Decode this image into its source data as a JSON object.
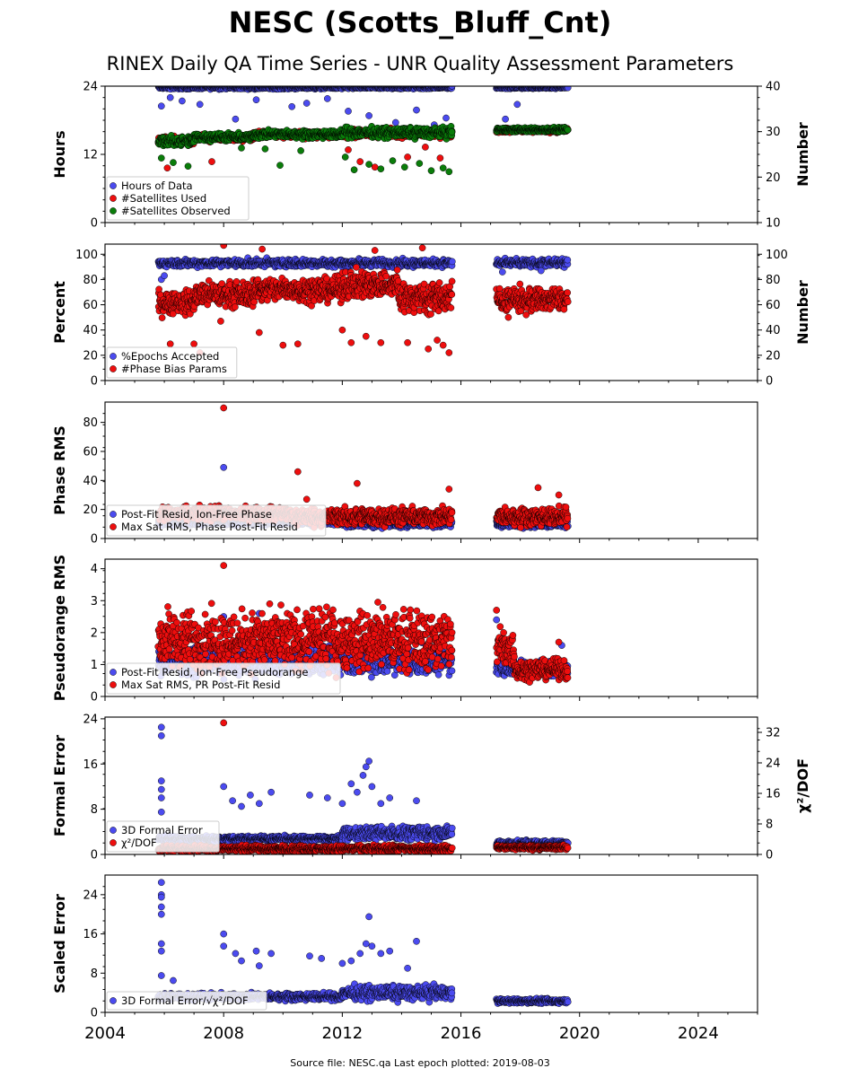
{
  "header": {
    "title": "NESC (Scotts_Bluff_Cnt)",
    "subtitle": "RINEX Daily QA Time Series - UNR Quality Assessment Parameters"
  },
  "footer": "Source file: NESC.qa Last epoch plotted: 2019-08-03",
  "colors": {
    "blue": "#4b4bef",
    "red": "#ee0e0e",
    "green": "#0a7d0a"
  },
  "chart_data": [
    {
      "type": "scatter",
      "ylabel": "Hours",
      "ylabel_right": "Number",
      "xlim": [
        2004.0,
        2026.0
      ],
      "ylim": [
        0,
        24
      ],
      "ylim_right": [
        10,
        40
      ],
      "yticks": [
        "0",
        "12",
        "24"
      ],
      "yticks_right": [
        "10",
        "20",
        "30",
        "40"
      ],
      "legend_position": "lower-left",
      "series": [
        {
          "name": "Hours of Data",
          "color": "blue",
          "axis": "left",
          "segments": [
            [
              2005.8,
              2015.7,
              23.8,
              0.25
            ],
            [
              2017.2,
              2019.6,
              23.8,
              0.2
            ]
          ],
          "outliers": [
            [
              2005.9,
              20.5
            ],
            [
              2006.2,
              22.0
            ],
            [
              2006.6,
              21.4
            ],
            [
              2007.2,
              20.8
            ],
            [
              2008.4,
              18.2
            ],
            [
              2009.1,
              21.6
            ],
            [
              2010.3,
              20.4
            ],
            [
              2010.8,
              21.0
            ],
            [
              2011.5,
              21.8
            ],
            [
              2012.2,
              19.6
            ],
            [
              2012.9,
              18.8
            ],
            [
              2013.4,
              16.0
            ],
            [
              2013.8,
              17.6
            ],
            [
              2014.5,
              19.8
            ],
            [
              2015.1,
              17.2
            ],
            [
              2015.5,
              18.4
            ],
            [
              2017.5,
              18.2
            ],
            [
              2017.9,
              20.8
            ]
          ]
        },
        {
          "name": "#Satellites Used",
          "color": "red",
          "axis": "right",
          "segments": [
            [
              2005.8,
              2007.0,
              28.0,
              0.8
            ],
            [
              2007.0,
              2009.0,
              28.6,
              0.6
            ],
            [
              2009.0,
              2012.0,
              29.3,
              0.6
            ],
            [
              2012.0,
              2015.7,
              29.6,
              0.8
            ],
            [
              2017.2,
              2019.6,
              30.3,
              0.4
            ]
          ],
          "outliers": [
            [
              2006.1,
              22.0
            ],
            [
              2007.6,
              23.4
            ],
            [
              2012.2,
              26.0
            ],
            [
              2012.6,
              23.4
            ],
            [
              2013.1,
              22.2
            ],
            [
              2014.2,
              24.4
            ],
            [
              2014.8,
              26.6
            ],
            [
              2015.3,
              24.2
            ]
          ]
        },
        {
          "name": "#Satellites Observed",
          "color": "green",
          "axis": "right",
          "segments": [
            [
              2005.8,
              2007.0,
              27.9,
              0.9
            ],
            [
              2007.0,
              2009.0,
              28.8,
              0.7
            ],
            [
              2009.0,
              2012.0,
              29.4,
              0.7
            ],
            [
              2012.0,
              2015.7,
              29.8,
              0.9
            ],
            [
              2017.2,
              2019.6,
              30.4,
              0.4
            ]
          ],
          "outliers": [
            [
              2005.9,
              24.2
            ],
            [
              2006.3,
              23.2
            ],
            [
              2006.8,
              22.4
            ],
            [
              2008.6,
              26.4
            ],
            [
              2009.4,
              26.2
            ],
            [
              2009.9,
              22.6
            ],
            [
              2010.6,
              25.8
            ],
            [
              2012.1,
              24.4
            ],
            [
              2012.4,
              21.6
            ],
            [
              2012.9,
              22.8
            ],
            [
              2013.3,
              21.8
            ],
            [
              2013.7,
              23.6
            ],
            [
              2014.1,
              22.2
            ],
            [
              2014.6,
              23.0
            ],
            [
              2015.0,
              21.4
            ],
            [
              2015.4,
              22.0
            ],
            [
              2015.6,
              21.2
            ]
          ]
        }
      ]
    },
    {
      "type": "scatter",
      "ylabel": "Percent",
      "ylabel_right": "Number",
      "xlim": [
        2004.0,
        2026.0
      ],
      "ylim": [
        0,
        108
      ],
      "ylim_right": [
        0,
        108
      ],
      "yticks": [
        "0",
        "20",
        "40",
        "60",
        "80",
        "100"
      ],
      "yticks_right": [
        "0",
        "20",
        "40",
        "60",
        "80",
        "100"
      ],
      "legend_position": "lower-left",
      "series": [
        {
          "name": "%Epochs Accepted",
          "color": "blue",
          "axis": "left",
          "segments": [
            [
              2005.8,
              2015.7,
              93.0,
              2.5
            ],
            [
              2017.2,
              2019.6,
              93.0,
              2.5
            ]
          ],
          "outliers": [
            [
              2005.9,
              80.0
            ],
            [
              2006.0,
              83.0
            ],
            [
              2017.4,
              86.0
            ],
            [
              2018.7,
              87.0
            ]
          ]
        },
        {
          "name": "#Phase Bias Params",
          "color": "red",
          "axis": "right",
          "segments": [
            [
              2005.8,
              2007.0,
              62.0,
              8.0
            ],
            [
              2007.0,
              2009.0,
              68.0,
              8.0
            ],
            [
              2009.0,
              2012.0,
              72.0,
              8.0
            ],
            [
              2012.0,
              2013.9,
              76.0,
              9.0
            ],
            [
              2013.9,
              2015.7,
              66.0,
              10.0
            ],
            [
              2017.2,
              2019.6,
              64.0,
              8.0
            ]
          ],
          "outliers": [
            [
              2006.2,
              29.0
            ],
            [
              2007.0,
              29.0
            ],
            [
              2007.2,
              22.0
            ],
            [
              2007.9,
              47.0
            ],
            [
              2008.0,
              107.0
            ],
            [
              2009.3,
              104.0
            ],
            [
              2009.2,
              38.0
            ],
            [
              2010.0,
              28.0
            ],
            [
              2010.5,
              29.0
            ],
            [
              2012.0,
              40.0
            ],
            [
              2012.3,
              30.0
            ],
            [
              2012.8,
              35.0
            ],
            [
              2013.1,
              103.0
            ],
            [
              2013.3,
              30.0
            ],
            [
              2014.2,
              30.0
            ],
            [
              2014.7,
              105.0
            ],
            [
              2014.9,
              25.0
            ],
            [
              2015.2,
              32.0
            ],
            [
              2015.4,
              28.0
            ],
            [
              2015.6,
              22.0
            ],
            [
              2017.6,
              50.0
            ],
            [
              2018.2,
              52.0
            ]
          ]
        }
      ]
    },
    {
      "type": "scatter",
      "ylabel": "Phase RMS",
      "xlim": [
        2004.0,
        2026.0
      ],
      "ylim": [
        0,
        94
      ],
      "yticks": [
        "0",
        "20",
        "40",
        "60",
        "80"
      ],
      "legend_position": "lower-left",
      "series": [
        {
          "name": "Post-Fit Resid, Ion-Free Phase",
          "color": "blue",
          "axis": "left",
          "segments": [
            [
              2005.8,
              2012.0,
              11.5,
              2.0
            ],
            [
              2012.0,
              2015.7,
              10.0,
              2.0
            ],
            [
              2017.2,
              2019.6,
              10.0,
              2.0
            ]
          ],
          "outliers": [
            [
              2008.0,
              49.0
            ]
          ]
        },
        {
          "name": "Max Sat RMS, Phase Post-Fit Resid",
          "color": "red",
          "axis": "left",
          "segments": [
            [
              2005.8,
              2010.3,
              17.0,
              4.0
            ],
            [
              2010.3,
              2015.7,
              15.0,
              5.0
            ],
            [
              2017.2,
              2019.6,
              15.0,
              5.0
            ]
          ],
          "outliers": [
            [
              2008.0,
              90.0
            ],
            [
              2010.5,
              46.0
            ],
            [
              2012.5,
              38.0
            ],
            [
              2015.6,
              34.0
            ],
            [
              2018.6,
              35.0
            ],
            [
              2019.3,
              30.0
            ],
            [
              2010.8,
              27.0
            ]
          ]
        }
      ]
    },
    {
      "type": "scatter",
      "ylabel": "Pseudorange RMS",
      "xlim": [
        2004.0,
        2026.0
      ],
      "ylim": [
        0,
        4.3
      ],
      "yticks": [
        "0",
        "1",
        "2",
        "3",
        "4"
      ],
      "legend_position": "lower-left",
      "series": [
        {
          "name": "Post-Fit Resid, Ion-Free Pseudorange",
          "color": "blue",
          "axis": "left",
          "segments": [
            [
              2005.8,
              2015.7,
              1.1,
              0.35
            ],
            [
              2017.2,
              2019.6,
              0.9,
              0.2
            ]
          ],
          "outliers": [
            [
              2008.0,
              2.5
            ],
            [
              2009.2,
              2.6
            ],
            [
              2017.2,
              2.4
            ],
            [
              2019.4,
              1.6
            ]
          ]
        },
        {
          "name": "Max Sat RMS, PR Post-Fit Resid",
          "color": "red",
          "axis": "left",
          "segments": [
            [
              2005.8,
              2015.7,
              1.75,
              0.75
            ],
            [
              2017.2,
              2017.8,
              1.5,
              0.6
            ],
            [
              2017.8,
              2019.6,
              0.85,
              0.25
            ]
          ],
          "outliers": [
            [
              2008.0,
              4.1
            ],
            [
              2013.2,
              2.95
            ],
            [
              2017.2,
              2.7
            ],
            [
              2019.3,
              1.7
            ]
          ]
        }
      ]
    },
    {
      "type": "scatter",
      "ylabel": "Formal Error",
      "ylabel_right": "χ²/DOF",
      "xlim": [
        2004.0,
        2026.0
      ],
      "ylim": [
        0,
        24.3
      ],
      "ylim_right": [
        0,
        36
      ],
      "yticks": [
        "0",
        "8",
        "16",
        "24"
      ],
      "yticks_right": [
        "0",
        "8",
        "16",
        "24",
        "32"
      ],
      "legend_position": "lower-left",
      "series": [
        {
          "name": "3D Formal Error",
          "color": "blue",
          "axis": "left",
          "segments": [
            [
              2005.8,
              2012.0,
              2.8,
              0.4
            ],
            [
              2012.0,
              2015.7,
              3.8,
              1.0
            ],
            [
              2017.2,
              2019.6,
              2.0,
              0.4
            ]
          ],
          "outliers": [
            [
              2005.9,
              22.5
            ],
            [
              2005.9,
              21.0
            ],
            [
              2005.9,
              13.0
            ],
            [
              2005.9,
              11.5
            ],
            [
              2005.9,
              10.0
            ],
            [
              2005.9,
              7.5
            ],
            [
              2008.0,
              12.0
            ],
            [
              2008.3,
              9.5
            ],
            [
              2008.6,
              8.5
            ],
            [
              2008.9,
              10.5
            ],
            [
              2009.2,
              9.0
            ],
            [
              2009.6,
              11.0
            ],
            [
              2010.9,
              10.5
            ],
            [
              2011.5,
              10.0
            ],
            [
              2012.0,
              9.0
            ],
            [
              2012.3,
              12.5
            ],
            [
              2012.5,
              11.0
            ],
            [
              2012.7,
              14.0
            ],
            [
              2012.8,
              15.5
            ],
            [
              2012.9,
              16.5
            ],
            [
              2013.0,
              12.0
            ],
            [
              2013.3,
              9.0
            ],
            [
              2013.6,
              10.0
            ],
            [
              2014.5,
              9.5
            ]
          ]
        },
        {
          "name": "χ²/DOF",
          "color": "red",
          "axis": "right",
          "segments": [
            [
              2005.8,
              2015.7,
              1.5,
              0.7
            ],
            [
              2017.2,
              2019.6,
              1.8,
              0.5
            ]
          ],
          "outliers": [
            [
              2008.0,
              34.5
            ]
          ]
        }
      ]
    },
    {
      "type": "scatter",
      "ylabel": "Scaled Error",
      "xlim": [
        2004.0,
        2026.0
      ],
      "ylim": [
        0,
        28
      ],
      "yticks": [
        "0",
        "8",
        "16",
        "24"
      ],
      "legend_position": "lower-left",
      "series": [
        {
          "name": "3D Formal Error/√χ²/DOF",
          "color": "blue",
          "axis": "left",
          "segments": [
            [
              2005.8,
              2012.0,
              3.2,
              0.6
            ],
            [
              2012.0,
              2015.7,
              4.0,
              1.2
            ],
            [
              2017.2,
              2019.6,
              2.3,
              0.4
            ]
          ],
          "outliers": [
            [
              2005.9,
              26.5
            ],
            [
              2005.9,
              24.0
            ],
            [
              2005.9,
              23.5
            ],
            [
              2005.9,
              21.5
            ],
            [
              2005.9,
              20.0
            ],
            [
              2005.9,
              14.0
            ],
            [
              2005.9,
              12.5
            ],
            [
              2005.9,
              7.5
            ],
            [
              2006.3,
              6.5
            ],
            [
              2008.0,
              16.0
            ],
            [
              2008.0,
              13.5
            ],
            [
              2008.4,
              12.0
            ],
            [
              2008.6,
              10.5
            ],
            [
              2009.1,
              12.5
            ],
            [
              2009.2,
              9.5
            ],
            [
              2009.6,
              12.0
            ],
            [
              2010.9,
              11.5
            ],
            [
              2011.3,
              11.0
            ],
            [
              2012.0,
              10.0
            ],
            [
              2012.3,
              10.5
            ],
            [
              2012.6,
              12.0
            ],
            [
              2012.8,
              14.0
            ],
            [
              2012.9,
              19.5
            ],
            [
              2013.0,
              13.5
            ],
            [
              2013.3,
              12.0
            ],
            [
              2013.6,
              12.5
            ],
            [
              2014.5,
              14.5
            ],
            [
              2014.2,
              9.0
            ]
          ]
        }
      ]
    }
  ],
  "x_axis": {
    "min": 2004.0,
    "max": 2026.0,
    "tick_labels": [
      "2004",
      "2008",
      "2012",
      "2016",
      "2020",
      "2024"
    ]
  }
}
